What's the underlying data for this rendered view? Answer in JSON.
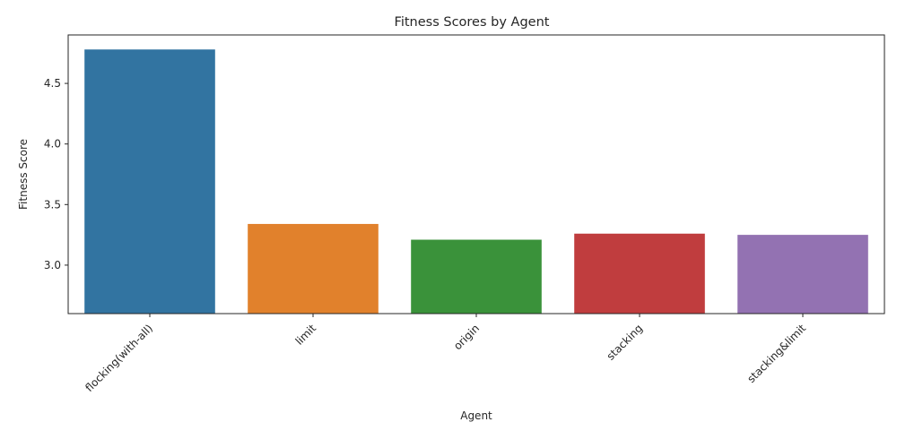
{
  "chart_data": {
    "type": "bar",
    "title": "Fitness Scores by Agent",
    "xlabel": "Agent",
    "ylabel": "Fitness Score",
    "categories": [
      "flocking(with-all)",
      "limit",
      "origin",
      "stacking",
      "stacking&limit"
    ],
    "values": [
      4.78,
      3.34,
      3.21,
      3.26,
      3.25
    ],
    "colors": [
      "#3274a1",
      "#e1812c",
      "#3a923a",
      "#c03d3e",
      "#9372b2"
    ],
    "ylim": [
      2.6,
      4.9
    ],
    "yticks": [
      3.0,
      3.5,
      4.0,
      4.5
    ],
    "ytick_labels": [
      "3.0",
      "3.5",
      "4.0",
      "4.5"
    ],
    "grid": false,
    "legend": "none"
  }
}
